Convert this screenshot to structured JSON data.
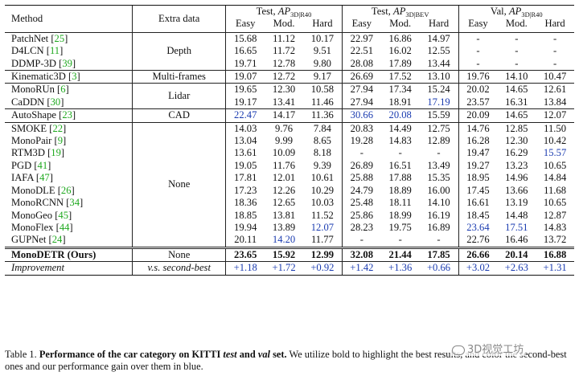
{
  "headers": {
    "method": "Method",
    "extra": "Extra data",
    "groups": [
      {
        "label": "Test, ",
        "ap": "AP",
        "sub": "3D|R40"
      },
      {
        "label": "Test, ",
        "ap": "AP",
        "sub": "3D|BEV"
      },
      {
        "label": "Val, ",
        "ap": "AP",
        "sub": "3D|R40"
      }
    ],
    "sub": [
      "Easy",
      "Mod.",
      "Hard"
    ]
  },
  "rows": [
    {
      "name": "PatchNet",
      "ref": "25",
      "extra": "",
      "vals": [
        "15.68",
        "11.12",
        "10.17",
        "22.97",
        "16.86",
        "14.97",
        "-",
        "-",
        "-"
      ]
    },
    {
      "name": "D4LCN",
      "ref": "11",
      "extra": "Depth",
      "vals": [
        "16.65",
        "11.72",
        "9.51",
        "22.51",
        "16.02",
        "12.55",
        "-",
        "-",
        "-"
      ]
    },
    {
      "name": "DDMP-3D",
      "ref": "39",
      "extra": "",
      "vals": [
        "19.71",
        "12.78",
        "9.80",
        "28.08",
        "17.89",
        "13.44",
        "-",
        "-",
        "-"
      ]
    },
    {
      "name": "Kinematic3D",
      "ref": "3",
      "extra": "Multi-frames",
      "vals": [
        "19.07",
        "12.72",
        "9.17",
        "26.69",
        "17.52",
        "13.10",
        "19.76",
        "14.10",
        "10.47"
      ]
    },
    {
      "name": "MonoRUn",
      "ref": "6",
      "extra": "",
      "vals": [
        "19.65",
        "12.30",
        "10.58",
        "27.94",
        "17.34",
        "15.24",
        "20.02",
        "14.65",
        "12.61"
      ]
    },
    {
      "name": "CaDDN",
      "ref": "30",
      "extra": "Lidar",
      "vals": [
        "19.17",
        "13.41",
        "11.46",
        "27.94",
        "18.91",
        "17.19",
        "23.57",
        "16.31",
        "13.84"
      ]
    },
    {
      "name": "AutoShape",
      "ref": "23",
      "extra": "CAD",
      "vals": [
        "22.47",
        "14.17",
        "11.36",
        "30.66",
        "20.08",
        "15.59",
        "20.09",
        "14.65",
        "12.07"
      ]
    },
    {
      "name": "SMOKE",
      "ref": "22",
      "extra": "",
      "vals": [
        "14.03",
        "9.76",
        "7.84",
        "20.83",
        "14.49",
        "12.75",
        "14.76",
        "12.85",
        "11.50"
      ]
    },
    {
      "name": "MonoPair",
      "ref": "9",
      "extra": "",
      "vals": [
        "13.04",
        "9.99",
        "8.65",
        "19.28",
        "14.83",
        "12.89",
        "16.28",
        "12.30",
        "10.42"
      ]
    },
    {
      "name": "RTM3D",
      "ref": "19",
      "extra": "",
      "vals": [
        "13.61",
        "10.09",
        "8.18",
        "-",
        "-",
        "-",
        "19.47",
        "16.29",
        "15.57"
      ]
    },
    {
      "name": "PGD",
      "ref": "41",
      "extra": "",
      "vals": [
        "19.05",
        "11.76",
        "9.39",
        "26.89",
        "16.51",
        "13.49",
        "19.27",
        "13.23",
        "10.65"
      ]
    },
    {
      "name": "IAFA",
      "ref": "47",
      "extra": "",
      "vals": [
        "17.81",
        "12.01",
        "10.61",
        "25.88",
        "17.88",
        "15.35",
        "18.95",
        "14.96",
        "14.84"
      ]
    },
    {
      "name": "MonoDLE",
      "ref": "26",
      "extra": "None",
      "vals": [
        "17.23",
        "12.26",
        "10.29",
        "24.79",
        "18.89",
        "16.00",
        "17.45",
        "13.66",
        "11.68"
      ]
    },
    {
      "name": "MonoRCNN",
      "ref": "34",
      "extra": "",
      "vals": [
        "18.36",
        "12.65",
        "10.03",
        "25.48",
        "18.11",
        "14.10",
        "16.61",
        "13.19",
        "10.65"
      ]
    },
    {
      "name": "MonoGeo",
      "ref": "45",
      "extra": "",
      "vals": [
        "18.85",
        "13.81",
        "11.52",
        "25.86",
        "18.99",
        "16.19",
        "18.45",
        "14.48",
        "12.87"
      ]
    },
    {
      "name": "MonoFlex",
      "ref": "44",
      "extra": "",
      "vals": [
        "19.94",
        "13.89",
        "12.07",
        "28.23",
        "19.75",
        "16.89",
        "23.64",
        "17.51",
        "14.83"
      ]
    },
    {
      "name": "GUPNet",
      "ref": "24",
      "extra": "",
      "vals": [
        "20.11",
        "14.20",
        "11.77",
        "-",
        "-",
        "-",
        "22.76",
        "16.46",
        "13.72"
      ]
    }
  ],
  "ours": {
    "name": "MonoDETR (Ours)",
    "extra": "None",
    "vals": [
      "23.65",
      "15.92",
      "12.99",
      "32.08",
      "21.44",
      "17.85",
      "26.66",
      "20.14",
      "16.88"
    ]
  },
  "improvement": {
    "label": "Improvement",
    "extra": "v.s. second-best",
    "vals": [
      "+1.18",
      "+1.72",
      "+0.92",
      "+1.42",
      "+1.36",
      "+0.66",
      "+3.02",
      "+2.63",
      "+1.31"
    ]
  },
  "blue_cells": [
    "6-0",
    "15-2",
    "5-5",
    "6-3",
    "6-4",
    "16-1",
    "15-6",
    "15-7",
    "9-8"
  ],
  "caption": {
    "prefix": "Table 1. ",
    "bold_a": "Performance of the car category on KITTI ",
    "bold_it_test": "test",
    "bold_and": " and ",
    "bold_it_val": "val",
    "bold_b": " set.",
    "rest": " We utilize bold to highlight the best results, and color the second-best ones and our performance gain over them in blue."
  },
  "watermark": "3D视觉工坊"
}
